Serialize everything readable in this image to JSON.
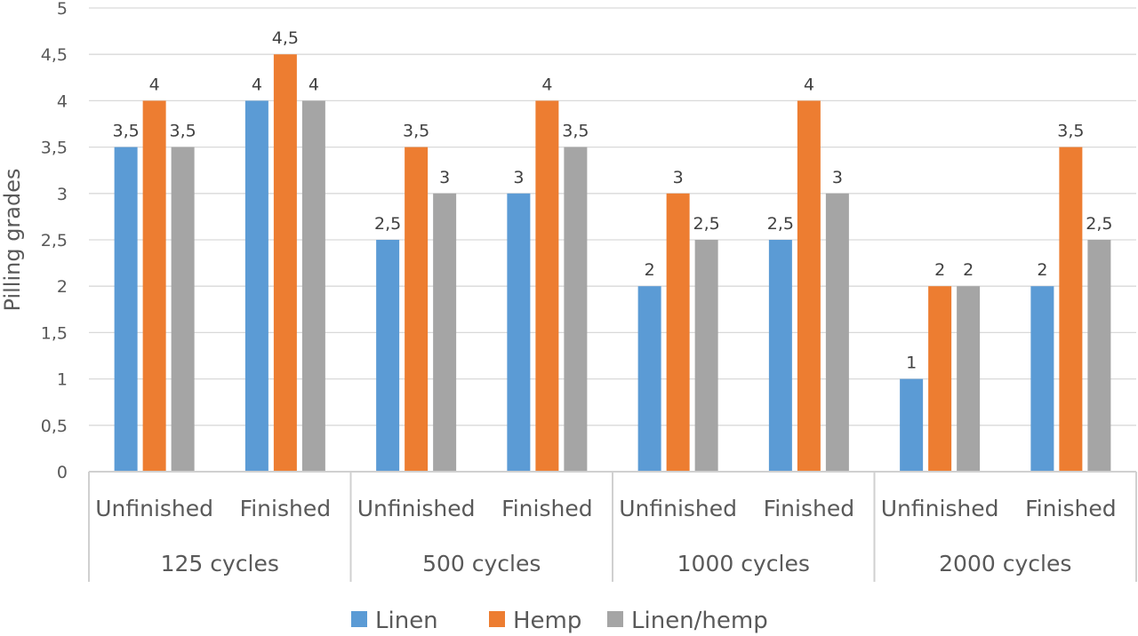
{
  "chart_data": {
    "type": "bar",
    "ylabel": "Pilling grades",
    "xlabel": "",
    "ylim": [
      0,
      5
    ],
    "ytick_step": 0.5,
    "ytick_labels": [
      "0",
      "0,5",
      "1",
      "1,5",
      "2",
      "2,5",
      "3",
      "3,5",
      "4",
      "4,5",
      "5"
    ],
    "grid": true,
    "legend_position": "bottom",
    "groups": [
      "125 cycles",
      "500 cycles",
      "1000 cycles",
      "2000 cycles"
    ],
    "subcategories": [
      "Unfinished",
      "Finished"
    ],
    "categories": [
      "125 cycles / Unfinished",
      "125 cycles / Finished",
      "500 cycles / Unfinished",
      "500 cycles / Finished",
      "1000 cycles / Unfinished",
      "1000 cycles / Finished",
      "2000 cycles / Unfinished",
      "2000 cycles / Finished"
    ],
    "series": [
      {
        "name": "Linen",
        "color": "#5B9BD5",
        "values": [
          3.5,
          4,
          2.5,
          3,
          2,
          2.5,
          1,
          2
        ]
      },
      {
        "name": "Hemp",
        "color": "#ED7D31",
        "values": [
          4,
          4.5,
          3.5,
          4,
          3,
          4,
          2,
          3.5
        ]
      },
      {
        "name": "Linen/hemp",
        "color": "#A5A5A5",
        "values": [
          3.5,
          4,
          3,
          3.5,
          2.5,
          3,
          2,
          2.5
        ]
      }
    ]
  }
}
